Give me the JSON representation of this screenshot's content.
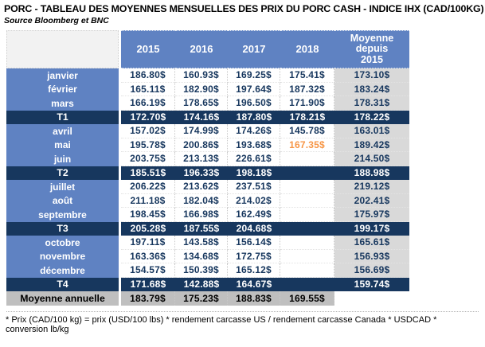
{
  "title": "PORC - TABLEAU DES MOYENNES MENSUELLES DES PRIX DU PORC CASH - INDICE IHX (CAD/100KG)",
  "source": "Source Bloomberg et BNC",
  "footnote": "* Prix (CAD/100 kg) = prix (USD/100 lbs) * rendement carcasse US / rendement carcasse Canada * USDCAD * conversion lb/kg",
  "colors": {
    "header_blue": "#5F82C2",
    "quarter_navy": "#17375E",
    "value_text": "#17375E",
    "moyenne_column_gray": "#D9D9D9",
    "annual_row_gray": "#BFBFBF",
    "corner_gray": "#F2F2F2",
    "highlight_orange": "#F79646"
  },
  "table": {
    "columns": [
      "2015",
      "2016",
      "2017",
      "2018",
      "Moyenne depuis 2015"
    ],
    "rows": [
      {
        "label": "janvier",
        "type": "month",
        "values": [
          "186.80$",
          "160.93$",
          "169.25$",
          "175.41$",
          "173.10$"
        ]
      },
      {
        "label": "février",
        "type": "month",
        "values": [
          "165.11$",
          "182.90$",
          "197.64$",
          "187.32$",
          "183.24$"
        ]
      },
      {
        "label": "mars",
        "type": "month",
        "values": [
          "166.19$",
          "178.65$",
          "196.50$",
          "171.90$",
          "178.31$"
        ]
      },
      {
        "label": "T1",
        "type": "quarter",
        "values": [
          "172.70$",
          "174.16$",
          "187.80$",
          "178.21$",
          "178.22$"
        ]
      },
      {
        "label": "avril",
        "type": "month",
        "values": [
          "157.02$",
          "174.99$",
          "174.26$",
          "145.78$",
          "163.01$"
        ]
      },
      {
        "label": "mai",
        "type": "month",
        "values": [
          "195.78$",
          "200.86$",
          "193.68$",
          "167.35$",
          "189.42$"
        ],
        "highlight_col": 3
      },
      {
        "label": "juin",
        "type": "month",
        "values": [
          "203.75$",
          "213.13$",
          "226.61$",
          "",
          "214.50$"
        ]
      },
      {
        "label": "T2",
        "type": "quarter",
        "values": [
          "185.51$",
          "196.33$",
          "198.18$",
          "",
          "188.98$"
        ]
      },
      {
        "label": "juillet",
        "type": "month",
        "values": [
          "206.22$",
          "213.62$",
          "237.51$",
          "",
          "219.12$"
        ]
      },
      {
        "label": "août",
        "type": "month",
        "values": [
          "211.18$",
          "182.04$",
          "214.02$",
          "",
          "202.41$"
        ]
      },
      {
        "label": "septembre",
        "type": "month",
        "values": [
          "198.45$",
          "166.98$",
          "162.49$",
          "",
          "175.97$"
        ]
      },
      {
        "label": "T3",
        "type": "quarter",
        "values": [
          "205.28$",
          "187.55$",
          "204.68$",
          "",
          "199.17$"
        ]
      },
      {
        "label": "octobre",
        "type": "month",
        "values": [
          "197.11$",
          "143.58$",
          "156.14$",
          "",
          "165.61$"
        ]
      },
      {
        "label": "novembre",
        "type": "month",
        "values": [
          "163.36$",
          "134.68$",
          "172.75$",
          "",
          "156.93$"
        ]
      },
      {
        "label": "décembre",
        "type": "month",
        "values": [
          "154.57$",
          "150.39$",
          "165.12$",
          "",
          "156.69$"
        ]
      },
      {
        "label": "T4",
        "type": "quarter",
        "values": [
          "171.68$",
          "142.88$",
          "164.67$",
          "",
          "159.74$"
        ]
      },
      {
        "label": "Moyenne annuelle",
        "type": "annual",
        "values": [
          "183.79$",
          "175.23$",
          "188.83$",
          "169.55$",
          ""
        ]
      }
    ]
  }
}
